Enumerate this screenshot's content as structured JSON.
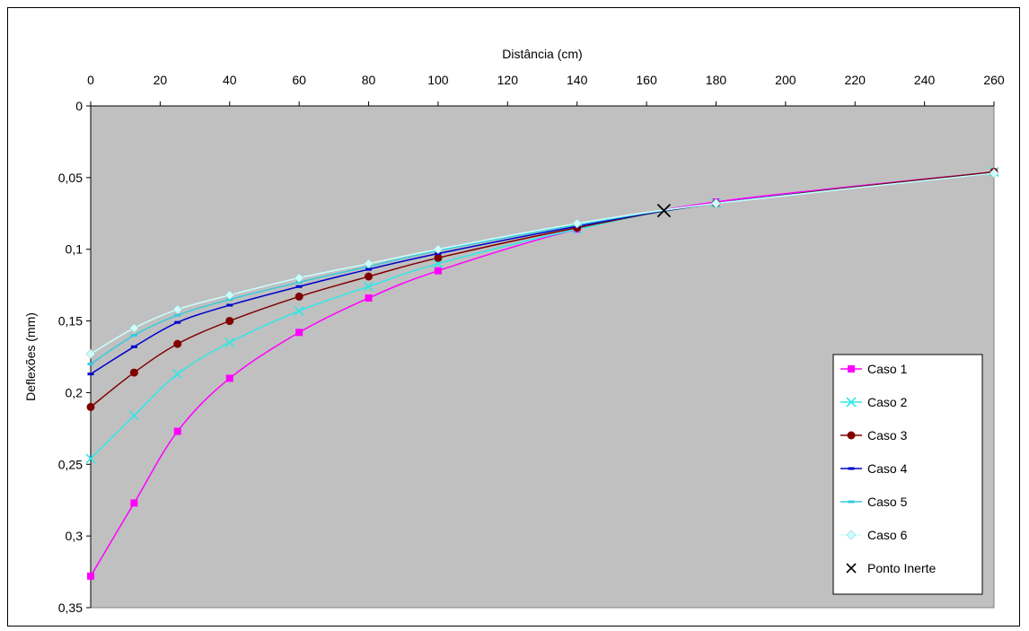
{
  "chart_data": {
    "type": "line",
    "xlabel": "Distância (cm)",
    "ylabel": "Deflexões (mm)",
    "xlim": [
      0,
      260
    ],
    "ylim": [
      0,
      0.35
    ],
    "y_inverted": true,
    "x_axis_position": "top",
    "plot_background": "#c0c0c0",
    "grid": false,
    "legend_position": "bottom-right",
    "x_ticks": [
      "0",
      "20",
      "40",
      "60",
      "80",
      "100",
      "120",
      "140",
      "160",
      "180",
      "200",
      "220",
      "240",
      "260"
    ],
    "y_ticks": [
      "0",
      "0,05",
      "0,1",
      "0,15",
      "0,2",
      "0,25",
      "0,3",
      "0,35"
    ],
    "x": [
      0,
      12.5,
      25,
      40,
      60,
      80,
      100,
      140,
      180,
      260
    ],
    "series": [
      {
        "name": "Caso 1",
        "color": "#ff00ff",
        "marker": "square",
        "values": [
          0.328,
          0.277,
          0.227,
          0.19,
          0.158,
          0.134,
          0.115,
          0.086,
          0.067,
          0.046
        ]
      },
      {
        "name": "Caso 2",
        "color": "#33e6e6",
        "marker": "x",
        "values": [
          0.246,
          0.216,
          0.187,
          0.165,
          0.143,
          0.126,
          0.11,
          0.086,
          0.068,
          0.046
        ]
      },
      {
        "name": "Caso 3",
        "color": "#800000",
        "marker": "circle",
        "values": [
          0.21,
          0.186,
          0.166,
          0.15,
          0.133,
          0.119,
          0.106,
          0.085,
          0.068,
          0.046
        ]
      },
      {
        "name": "Caso 4",
        "color": "#0000cc",
        "marker": "dash",
        "values": [
          0.187,
          0.168,
          0.151,
          0.139,
          0.126,
          0.114,
          0.103,
          0.084,
          0.068,
          0.047
        ]
      },
      {
        "name": "Caso 5",
        "color": "#33ccdd",
        "marker": "dash",
        "values": [
          0.18,
          0.16,
          0.146,
          0.135,
          0.123,
          0.112,
          0.101,
          0.083,
          0.068,
          0.047
        ]
      },
      {
        "name": "Caso 6",
        "color": "#ccffff",
        "marker": "diamond",
        "values": [
          0.173,
          0.155,
          0.142,
          0.132,
          0.12,
          0.11,
          0.1,
          0.082,
          0.068,
          0.047
        ]
      }
    ],
    "annotation": {
      "name": "Ponto Inerte",
      "x": 165,
      "y": 0.073,
      "color": "#000000",
      "marker": "x"
    }
  }
}
